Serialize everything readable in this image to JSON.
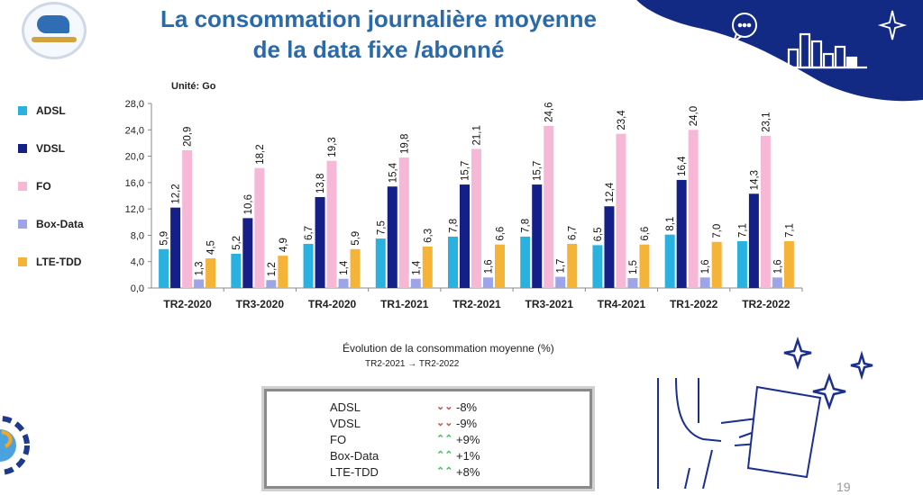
{
  "slide": {
    "title_line1": "La consommation journalière moyenne",
    "title_line2": "de la data fixe /abonné",
    "unit_label": "Unité: Go",
    "page_number": "19"
  },
  "colors": {
    "ADSL": "#29b1e0",
    "VDSL": "#141f87",
    "FO": "#f7b8d8",
    "Box-Data": "#9ea4e8",
    "LTE-TDD": "#f5b338",
    "title": "#2b6aa8",
    "banner": "#132a85"
  },
  "chart_data": {
    "type": "bar",
    "categories": [
      "TR2-2020",
      "TR3-2020",
      "TR4-2020",
      "TR1-2021",
      "TR2-2021",
      "TR3-2021",
      "TR4-2021",
      "TR1-2022",
      "TR2-2022"
    ],
    "series": [
      {
        "name": "ADSL",
        "values": [
          5.9,
          5.2,
          6.7,
          7.5,
          7.8,
          7.8,
          6.5,
          8.1,
          7.1
        ],
        "labels": [
          "5,9",
          "5,2",
          "6,7",
          "7,5",
          "7,8",
          "7,8",
          "6,5",
          "8,1",
          "7,1"
        ]
      },
      {
        "name": "VDSL",
        "values": [
          12.2,
          10.6,
          13.8,
          15.4,
          15.7,
          15.7,
          12.4,
          16.4,
          14.3
        ],
        "labels": [
          "12,2",
          "10,6",
          "13,8",
          "15,4",
          "15,7",
          "15,7",
          "12,4",
          "16,4",
          "14,3"
        ]
      },
      {
        "name": "FO",
        "values": [
          20.9,
          18.2,
          19.3,
          19.8,
          21.1,
          24.6,
          23.4,
          24.0,
          23.1
        ],
        "labels": [
          "20,9",
          "18,2",
          "19,3",
          "19,8",
          "21,1",
          "24,6",
          "23,4",
          "24,0",
          "23,1"
        ]
      },
      {
        "name": "Box-Data",
        "values": [
          1.3,
          1.2,
          1.4,
          1.4,
          1.6,
          1.7,
          1.5,
          1.6,
          1.6
        ],
        "labels": [
          "1,3",
          "1,2",
          "1,4",
          "1,4",
          "1,6",
          "1,7",
          "1,5",
          "1,6",
          "1,6"
        ]
      },
      {
        "name": "LTE-TDD",
        "values": [
          4.5,
          4.9,
          5.9,
          6.3,
          6.6,
          6.7,
          6.6,
          7.0,
          7.1
        ],
        "labels": [
          "4,5",
          "4,9",
          "5,9",
          "6,3",
          "6,6",
          "6,7",
          "6,6",
          "7,0",
          "7,1"
        ]
      }
    ],
    "ylim": [
      0,
      28
    ],
    "yticks": [
      0,
      4,
      8,
      12,
      16,
      20,
      24,
      28
    ],
    "ytick_labels": [
      "0,0",
      "4,0",
      "8,0",
      "12,0",
      "16,0",
      "20,0",
      "24,0",
      "28,0"
    ],
    "legend_position": "left",
    "grid": false
  },
  "evolution": {
    "title": "Évolution de la consommation moyenne (%)",
    "period_from": "TR2-2021",
    "period_arrow": "→",
    "period_to": "TR2-2022",
    "rows": [
      {
        "label": "ADSL",
        "value": "-8%",
        "direction": "down",
        "arrow": "⌄⌄"
      },
      {
        "label": "VDSL",
        "value": "-9%",
        "direction": "down",
        "arrow": "⌄⌄"
      },
      {
        "label": "FO",
        "value": "+9%",
        "direction": "up",
        "arrow": "⌃⌃"
      },
      {
        "label": "Box-Data",
        "value": "+1%",
        "direction": "up",
        "arrow": "⌃⌃"
      },
      {
        "label": "LTE-TDD",
        "value": "+8%",
        "direction": "up",
        "arrow": "⌃⌃"
      }
    ]
  },
  "icons": [
    "logo-icon",
    "chat-bubble-icon",
    "sparkle-icon",
    "bar-chart-icon",
    "gear-icon",
    "laptop-person-icon",
    "star-icon"
  ]
}
